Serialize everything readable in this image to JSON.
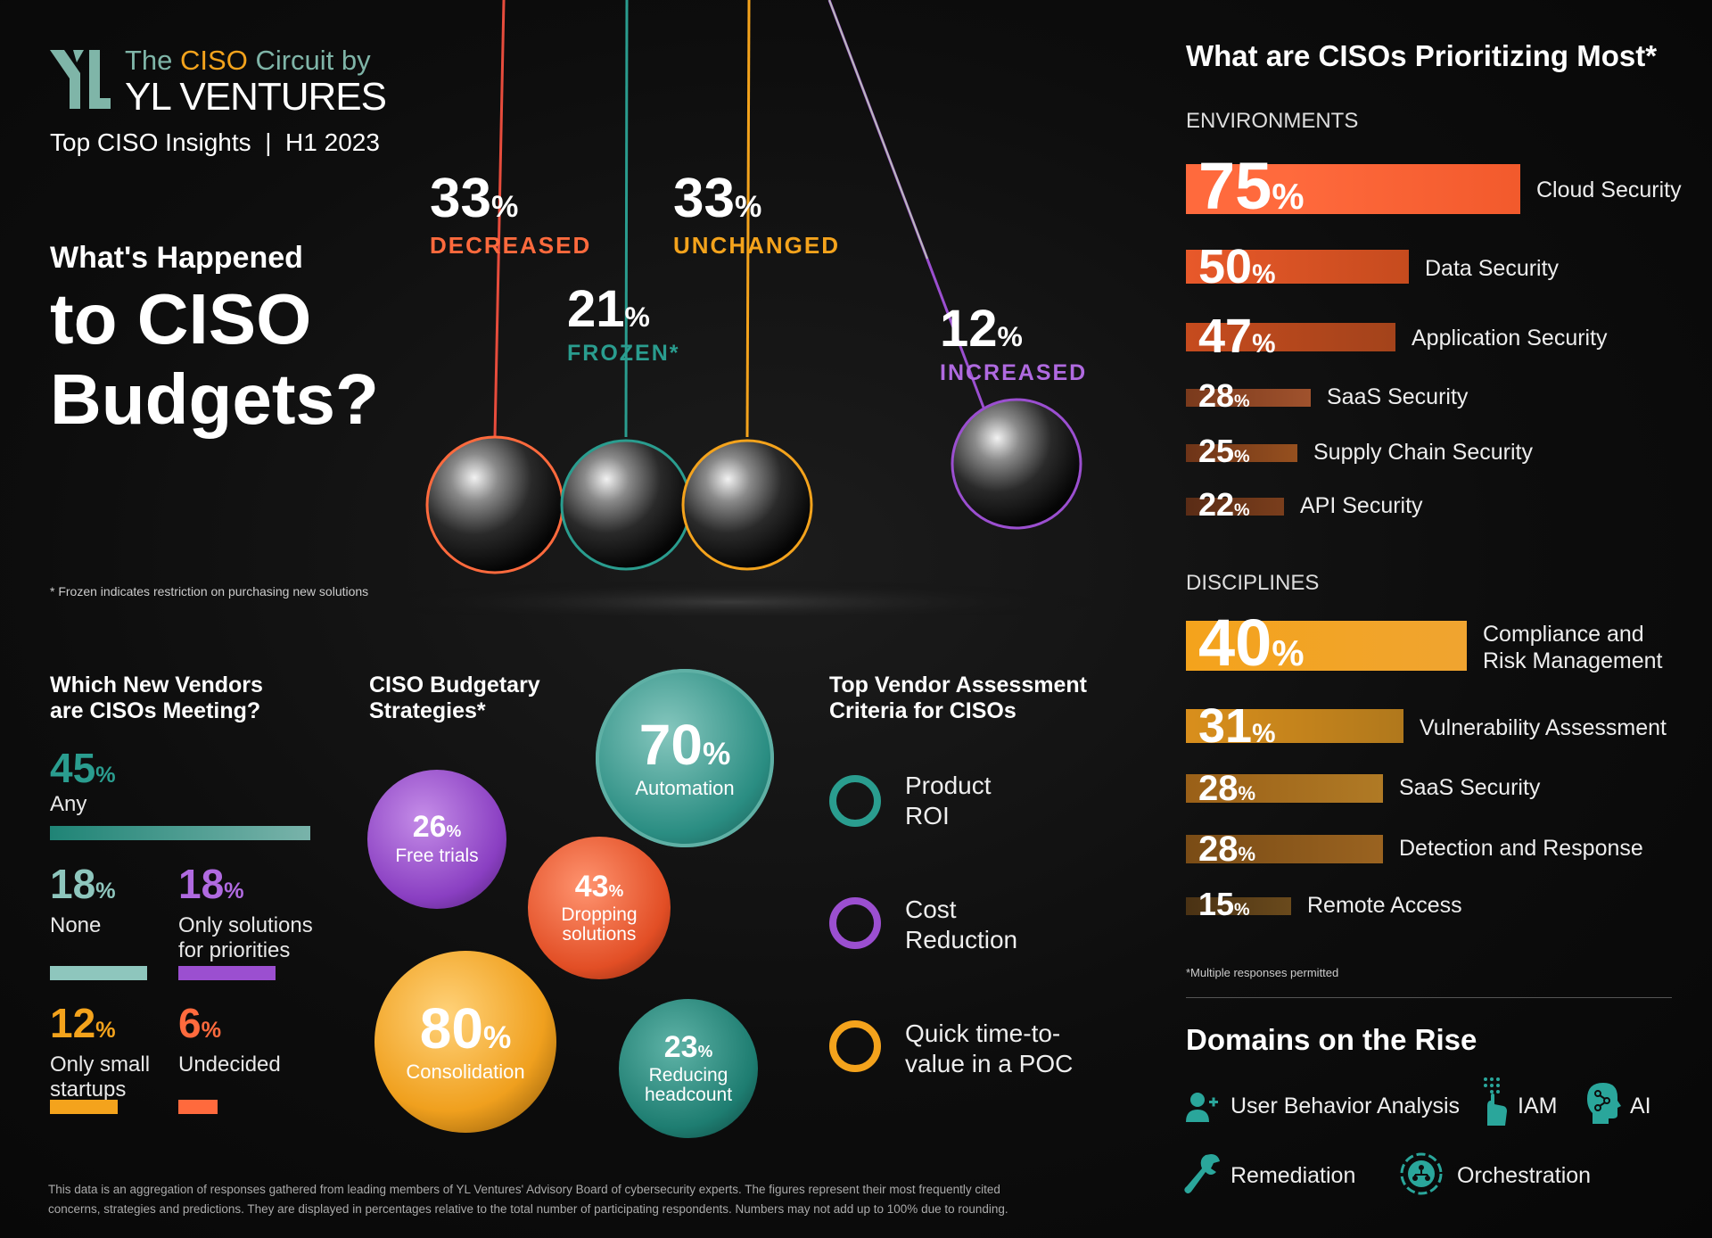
{
  "brand": {
    "line1_a": "The ",
    "line1_b": "CISO",
    "line1_c": " Circuit by",
    "line2": "YL VENTURES",
    "subtitle": "Top CISO Insights  |  H1 2023"
  },
  "hero": {
    "question_small": "What's Happened",
    "question_big1": "to CISO",
    "question_big2": "Budgets?",
    "footnote": "* Frozen indicates restriction on purchasing new solutions"
  },
  "colors": {
    "orange_red": "#ff6a3d",
    "teal": "#2a9d8f",
    "amber": "#f4a31c",
    "purple": "#9b4fd0"
  },
  "chart_data": [
    {
      "type": "bar",
      "title": "What's Happened to CISO Budgets?",
      "categories": [
        "DECREASED",
        "FROZEN*",
        "UNCHANGED",
        "INCREASED"
      ],
      "values": [
        33,
        21,
        33,
        12
      ],
      "unit": "%"
    },
    {
      "type": "bar",
      "title": "What are CISOs Prioritizing Most*",
      "group": "ENVIRONMENTS",
      "categories": [
        "Cloud Security",
        "Data Security",
        "Application Security",
        "SaaS Security",
        "Supply Chain Security",
        "API Security"
      ],
      "values": [
        75,
        50,
        47,
        28,
        25,
        22
      ],
      "unit": "%"
    },
    {
      "type": "bar",
      "group": "DISCIPLINES",
      "categories": [
        "Compliance and Risk Management",
        "Vulnerability Assessment",
        "SaaS Security",
        "Detection and Response",
        "Remote Access"
      ],
      "values": [
        40,
        31,
        28,
        28,
        15
      ],
      "unit": "%"
    },
    {
      "type": "bar",
      "title": "Which New Vendors are CISOs Meeting?",
      "categories": [
        "Any",
        "None",
        "Only solutions for priorities",
        "Only small startups",
        "Undecided"
      ],
      "values": [
        45,
        18,
        18,
        12,
        6
      ],
      "unit": "%"
    },
    {
      "type": "scatter",
      "title": "CISO Budgetary Strategies*",
      "categories": [
        "Automation",
        "Free trials",
        "Dropping solutions",
        "Consolidation",
        "Reducing headcount"
      ],
      "values": [
        70,
        26,
        43,
        80,
        23
      ],
      "unit": "%"
    }
  ],
  "budgets": [
    {
      "value": "33",
      "label": "DECREASED",
      "color": "#ff6a3d"
    },
    {
      "value": "21",
      "label": "FROZEN*",
      "color": "#2a9d8f"
    },
    {
      "value": "33",
      "label": "UNCHANGED",
      "color": "#f4a31c"
    },
    {
      "value": "12",
      "label": "INCREASED",
      "color": "#9b4fd0"
    }
  ],
  "priorities": {
    "title": "What are CISOs Prioritizing Most*",
    "env_heading": "ENVIRONMENTS",
    "env": [
      {
        "value": "75",
        "label": "Cloud Security"
      },
      {
        "value": "50",
        "label": "Data Security"
      },
      {
        "value": "47",
        "label": "Application Security"
      },
      {
        "value": "28",
        "label": "SaaS Security"
      },
      {
        "value": "25",
        "label": "Supply Chain Security"
      },
      {
        "value": "22",
        "label": "API Security"
      }
    ],
    "disc_heading": "DISCIPLINES",
    "disc": [
      {
        "value": "40",
        "label1": "Compliance and",
        "label2": "Risk Management"
      },
      {
        "value": "31",
        "label1": "Vulnerability Assessment",
        "label2": ""
      },
      {
        "value": "28",
        "label1": "SaaS Security",
        "label2": ""
      },
      {
        "value": "28",
        "label1": "Detection and Response",
        "label2": ""
      },
      {
        "value": "15",
        "label1": "Remote Access",
        "label2": ""
      }
    ],
    "footnote": "*Multiple responses permitted"
  },
  "vendors": {
    "title1": "Which New Vendors",
    "title2": "are CISOs Meeting?",
    "items": [
      {
        "value": "45",
        "label1": "Any",
        "label2": ""
      },
      {
        "value": "18",
        "label1": "None",
        "label2": ""
      },
      {
        "value": "18",
        "label1": "Only solutions",
        "label2": "for priorities"
      },
      {
        "value": "12",
        "label1": "Only small",
        "label2": "startups"
      },
      {
        "value": "6",
        "label1": "Undecided",
        "label2": ""
      }
    ]
  },
  "strategies": {
    "title1": "CISO Budgetary",
    "title2": "Strategies*",
    "items": [
      {
        "value": "70",
        "label1": "Automation",
        "label2": ""
      },
      {
        "value": "26",
        "label1": "Free trials",
        "label2": ""
      },
      {
        "value": "43",
        "label1": "Dropping",
        "label2": "solutions"
      },
      {
        "value": "80",
        "label1": "Consolidation",
        "label2": ""
      },
      {
        "value": "23",
        "label1": "Reducing",
        "label2": "headcount"
      }
    ]
  },
  "criteria": {
    "title1": "Top Vendor Assessment",
    "title2": "Criteria for CISOs",
    "items": [
      {
        "label1": "Product",
        "label2": "ROI"
      },
      {
        "label1": "Cost",
        "label2": "Reduction"
      },
      {
        "label1": "Quick time-to-",
        "label2": "value in a POC"
      }
    ]
  },
  "domains": {
    "title": "Domains on the Rise",
    "items": [
      {
        "label": "User Behavior Analysis",
        "icon": "user-plus-icon"
      },
      {
        "label": "IAM",
        "icon": "fingerprint-hand-icon"
      },
      {
        "label": "AI",
        "icon": "head-circuit-icon"
      },
      {
        "label": "Remediation",
        "icon": "wrench-icon"
      },
      {
        "label": "Orchestration",
        "icon": "network-globe-icon"
      }
    ]
  },
  "footer": {
    "line1": "This data is an aggregation of responses gathered from leading members of YL Ventures' Advisory Board of cybersecurity experts. The figures represent their most frequently cited",
    "line2": "concerns, strategies and predictions. They are displayed in percentages relative to the total number of participating respondents. Numbers may not add up to 100% due to rounding."
  },
  "pct_sign": "%"
}
